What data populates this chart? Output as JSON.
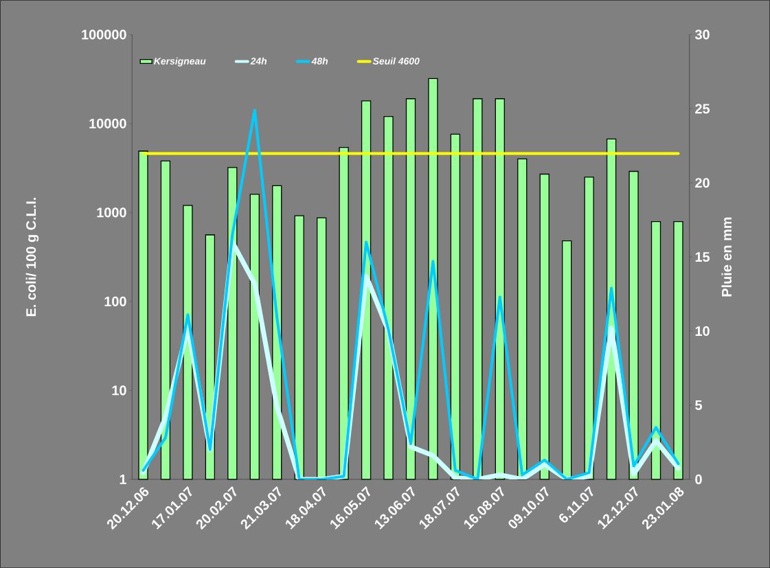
{
  "chart_data": {
    "type": "bar",
    "xlabel": null,
    "ylabel": "E. coli/ 100 g C.L.I.",
    "y2label": "Pluie en mm",
    "categories": [
      "20.12.06",
      null,
      "17.01.07",
      null,
      "20.02.07",
      null,
      "21.03.07",
      null,
      "18.04.07",
      null,
      "16.05.07",
      null,
      "13.06.07",
      null,
      "18.07.07",
      null,
      "16.08.07",
      null,
      "09.10.07",
      null,
      "6.11.07",
      null,
      "12.12.07",
      null,
      "23.01.08"
    ],
    "series": [
      {
        "name": "Kersigneau",
        "color": "#99ff99",
        "values": [
          4900,
          3800,
          1200,
          560,
          3200,
          1600,
          2000,
          920,
          870,
          5400,
          18000,
          12000,
          19000,
          32000,
          7600,
          19000,
          19000,
          4000,
          2700,
          480,
          2500,
          6700,
          2900,
          790,
          790
        ]
      },
      {
        "name": "24h",
        "type": "line",
        "axis": "y2",
        "color": "#ccffff",
        "values": [
          0.45,
          4.2,
          10.2,
          2.0,
          16.0,
          13.2,
          4.9,
          0,
          0,
          0.2,
          13.7,
          10.0,
          2.2,
          1.6,
          0.1,
          0,
          0.3,
          0,
          1.0,
          0,
          0.2,
          10.2,
          0.35,
          2.6,
          0.75
        ]
      },
      {
        "name": "48h",
        "type": "line",
        "axis": "y2",
        "color": "#00ccff",
        "values": [
          0.6,
          2.8,
          11.1,
          2.0,
          16.5,
          24.9,
          10.9,
          0,
          0,
          0.2,
          16.0,
          10.1,
          2.4,
          14.7,
          0.6,
          0,
          12.3,
          0.3,
          1.3,
          0,
          0.45,
          12.9,
          0.9,
          3.5,
          1.05
        ]
      }
    ],
    "ref_lines": [
      {
        "axis": "y",
        "value": 4600,
        "label": "Seuil 4600",
        "color": "#ffff00"
      }
    ],
    "log": "y",
    "ylim": [
      1,
      100000
    ],
    "yticks": [
      1,
      10,
      100,
      1000,
      10000,
      100000
    ],
    "y2lim": [
      0,
      30
    ],
    "y2ticks": [
      0,
      5,
      10,
      15,
      20,
      25,
      30
    ],
    "legend": "top"
  }
}
